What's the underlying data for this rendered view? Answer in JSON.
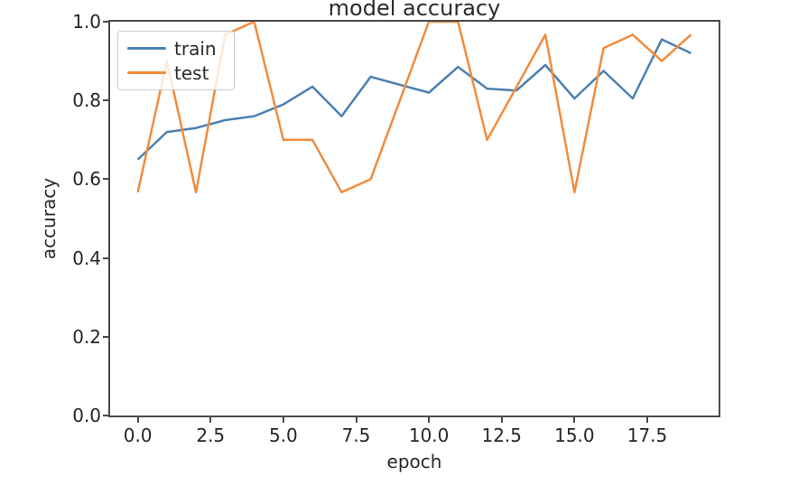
{
  "figure": {
    "background": "#ffffff"
  },
  "chart_data": {
    "type": "line",
    "title": "model accuracy",
    "xlabel": "epoch",
    "ylabel": "accuracy",
    "x": [
      0,
      1,
      2,
      3,
      4,
      5,
      6,
      7,
      8,
      9,
      10,
      11,
      12,
      13,
      14,
      15,
      16,
      17,
      18,
      19
    ],
    "series": [
      {
        "name": "train",
        "color": "#4b80b2",
        "values": [
          0.65,
          0.72,
          0.73,
          0.75,
          0.76,
          0.79,
          0.835,
          0.76,
          0.86,
          0.84,
          0.82,
          0.885,
          0.83,
          0.825,
          0.89,
          0.805,
          0.875,
          0.805,
          0.955,
          0.92
        ]
      },
      {
        "name": "test",
        "color": "#f28c3d",
        "values": [
          0.567,
          0.9,
          0.567,
          0.967,
          1.0,
          0.7,
          0.7,
          0.567,
          0.6,
          0.8,
          1.0,
          1.0,
          0.7,
          0.833,
          0.967,
          0.567,
          0.933,
          0.967,
          0.9,
          0.967
        ]
      }
    ],
    "xlim": [
      -0.95,
      19.95
    ],
    "ylim": [
      0,
      1.0
    ],
    "xticks": {
      "values": [
        0,
        2.5,
        5,
        7.5,
        10,
        12.5,
        15,
        17.5
      ],
      "labels": [
        "0.0",
        "2.5",
        "5.0",
        "7.5",
        "10.0",
        "12.5",
        "15.0",
        "17.5"
      ]
    },
    "yticks": {
      "values": [
        0,
        0.2,
        0.4,
        0.6,
        0.8,
        1.0
      ],
      "labels": [
        "0.0",
        "0.2",
        "0.4",
        "0.6",
        "0.8",
        "1.0"
      ]
    },
    "grid": false,
    "legend": {
      "position": "upper-left",
      "entries": [
        "train",
        "test"
      ]
    }
  },
  "style": {
    "spine_color": "#4a4a4a",
    "text_color": "#262626",
    "legend_border": "#cccccc",
    "line_width": 2.5
  }
}
